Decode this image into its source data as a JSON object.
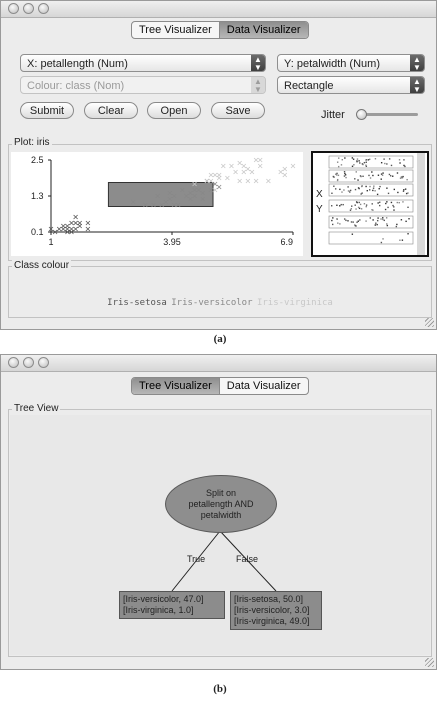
{
  "panel_a": {
    "tabs": [
      {
        "label": "Tree Visualizer",
        "active": false
      },
      {
        "label": "Data Visualizer",
        "active": true
      }
    ],
    "x_select": "X: petallength (Num)",
    "y_select": "Y: petalwidth (Num)",
    "colour_select": "Colour: class (Nom)",
    "shape_select": "Rectangle",
    "buttons": {
      "submit": "Submit",
      "clear": "Clear",
      "open": "Open",
      "save": "Save"
    },
    "jitter_label": "Jitter",
    "jitter_value": 0,
    "plot_title": "Plot: iris",
    "y_ticks": [
      "2.5",
      "1.3",
      "0.1"
    ],
    "x_ticks": [
      "1",
      "3.95",
      "6.9"
    ],
    "matrix_labels": {
      "x": "X",
      "y": "Y"
    },
    "class_colour_title": "Class colour",
    "legend": [
      "Iris-setosa",
      "Iris-versicolor",
      "Iris-virginica"
    ],
    "caption": "(a)",
    "colors": {
      "selection_rect": "#8c8c8c",
      "setosa": "#555555",
      "versicolor": "#888888",
      "virginica": "#c8c8c8"
    }
  },
  "chart_data": {
    "type": "scatter",
    "title": "Plot: iris",
    "xlabel": "petallength",
    "ylabel": "petalwidth",
    "xlim": [
      1,
      6.9
    ],
    "ylim": [
      0.1,
      2.5
    ],
    "x_ticks": [
      "1",
      "3.95",
      "6.9"
    ],
    "y_ticks": [
      "2.5",
      "1.3",
      "0.1"
    ],
    "selection_rectangle": {
      "x": [
        2.4,
        4.95
      ],
      "y": [
        0.95,
        1.75
      ]
    },
    "series": [
      {
        "name": "Iris-setosa",
        "color": "#555555",
        "points": [
          [
            1.4,
            0.2
          ],
          [
            1.3,
            0.2
          ],
          [
            1.5,
            0.2
          ],
          [
            1.4,
            0.3
          ],
          [
            1.7,
            0.4
          ],
          [
            1.5,
            0.1
          ],
          [
            1.6,
            0.2
          ],
          [
            1.1,
            0.1
          ],
          [
            1.2,
            0.2
          ],
          [
            1.9,
            0.4
          ],
          [
            1.6,
            0.6
          ],
          [
            1.3,
            0.3
          ],
          [
            1.5,
            0.4
          ],
          [
            1.0,
            0.2
          ],
          [
            1.7,
            0.3
          ],
          [
            1.4,
            0.1
          ],
          [
            1.6,
            0.4
          ],
          [
            1.9,
            0.2
          ]
        ]
      },
      {
        "name": "Iris-versicolor",
        "color": "#888888",
        "points": [
          [
            4.7,
            1.4
          ],
          [
            4.5,
            1.5
          ],
          [
            4.9,
            1.5
          ],
          [
            4.0,
            1.3
          ],
          [
            4.6,
            1.5
          ],
          [
            3.3,
            1.0
          ],
          [
            3.9,
            1.4
          ],
          [
            3.5,
            1.0
          ],
          [
            4.2,
            1.5
          ],
          [
            3.6,
            1.3
          ],
          [
            4.4,
            1.4
          ],
          [
            4.1,
            1.0
          ],
          [
            4.8,
            1.8
          ],
          [
            4.3,
            1.3
          ],
          [
            3.0,
            1.1
          ],
          [
            3.8,
            1.1
          ],
          [
            3.7,
            1.0
          ],
          [
            5.0,
            1.7
          ],
          [
            5.1,
            1.6
          ],
          [
            4.4,
            1.2
          ],
          [
            3.9,
            1.2
          ],
          [
            4.5,
            1.3
          ],
          [
            4.0,
            1.0
          ],
          [
            4.7,
            1.2
          ]
        ]
      },
      {
        "name": "Iris-virginica",
        "color": "#c8c8c8",
        "points": [
          [
            6.0,
            2.5
          ],
          [
            5.1,
            1.9
          ],
          [
            5.9,
            2.1
          ],
          [
            5.6,
            1.8
          ],
          [
            5.8,
            2.2
          ],
          [
            6.6,
            2.1
          ],
          [
            4.5,
            1.7
          ],
          [
            6.3,
            1.8
          ],
          [
            5.8,
            1.8
          ],
          [
            6.1,
            2.5
          ],
          [
            5.1,
            2.0
          ],
          [
            5.3,
            1.9
          ],
          [
            5.5,
            2.1
          ],
          [
            5.0,
            2.0
          ],
          [
            6.7,
            2.2
          ],
          [
            6.9,
            2.3
          ],
          [
            5.0,
            1.5
          ],
          [
            5.7,
            2.3
          ],
          [
            4.9,
            2.0
          ],
          [
            6.7,
            2.0
          ],
          [
            4.9,
            1.8
          ],
          [
            5.7,
            2.1
          ],
          [
            6.0,
            1.8
          ],
          [
            4.8,
            1.8
          ],
          [
            5.6,
            2.4
          ],
          [
            5.4,
            2.3
          ],
          [
            6.1,
            2.3
          ],
          [
            5.2,
            2.3
          ]
        ]
      }
    ]
  },
  "panel_b": {
    "tabs": [
      {
        "label": "Tree Visualizer",
        "active": true
      },
      {
        "label": "Data Visualizer",
        "active": false
      }
    ],
    "tree_view_title": "Tree View",
    "root": {
      "line1": "Split on",
      "line2": "petallength AND",
      "line3": "petalwidth"
    },
    "edge_true": "True",
    "edge_false": "False",
    "leaf_true": [
      "[Iris-versicolor, 47.0]",
      "[Iris-virginica, 1.0]"
    ],
    "leaf_false": [
      "[Iris-setosa, 50.0]",
      "[Iris-versicolor, 3.0]",
      "[Iris-virginica, 49.0]"
    ],
    "caption": "(b)"
  }
}
